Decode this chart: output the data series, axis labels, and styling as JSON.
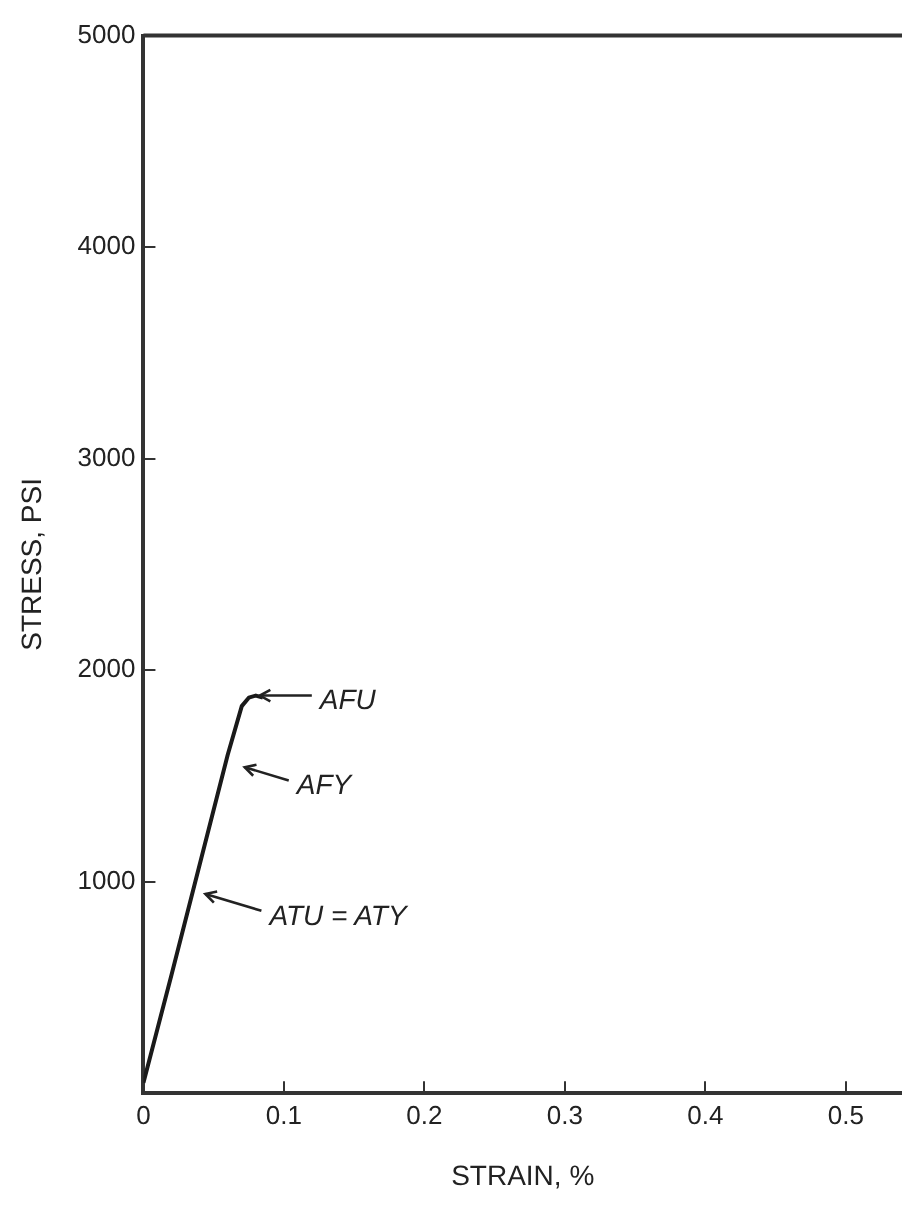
{
  "chart_data": {
    "type": "line",
    "xlabel": "STRAIN, %",
    "ylabel": "STRESS, PSI",
    "x": [
      0,
      0.02,
      0.04,
      0.06,
      0.07,
      0.075,
      0.08,
      0.085
    ],
    "series": [
      {
        "color": "#1a1a1a",
        "values": [
          50,
          560,
          1080,
          1600,
          1830,
          1870,
          1880,
          1870
        ]
      }
    ],
    "xlim": [
      0,
      0.54
    ],
    "xticks": [
      0,
      0.1,
      0.2,
      0.3,
      0.4,
      0.5
    ],
    "ylim": [
      0,
      5000
    ],
    "yticks": [
      1000,
      2000,
      3000,
      4000,
      5000
    ],
    "grid": false,
    "legend": false,
    "marker": "none",
    "line_style": "solid",
    "annotations": [
      {
        "text": "AFU",
        "x": 0.08,
        "y": 1880
      },
      {
        "text": "AFY",
        "x": 0.065,
        "y": 1560
      },
      {
        "text": "ATU = ATY",
        "x": 0.037,
        "y": 970
      }
    ]
  }
}
